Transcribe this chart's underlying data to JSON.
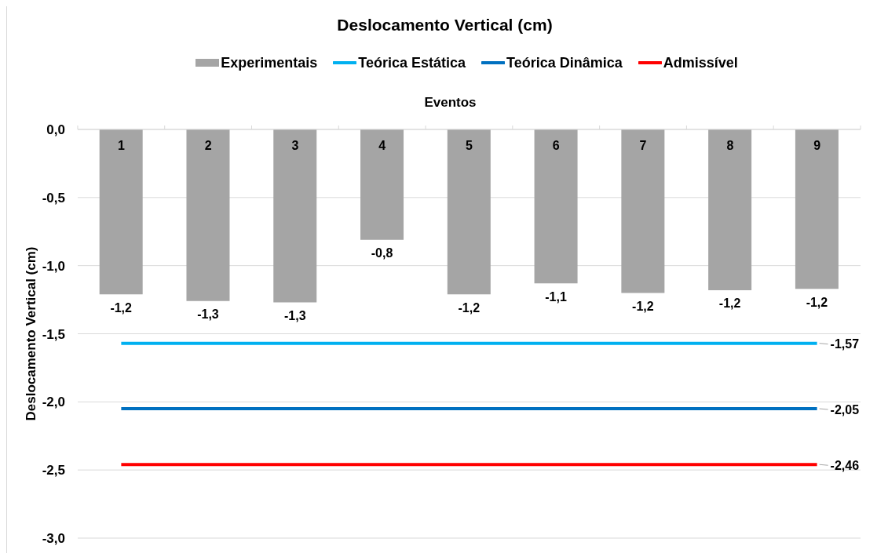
{
  "chart_data": {
    "type": "bar",
    "title": "Deslocamento Vertical (cm)",
    "xlabel": "Eventos",
    "ylabel": "Deslocamento Vertical (cm)",
    "categories": [
      "1",
      "2",
      "3",
      "4",
      "5",
      "6",
      "7",
      "8",
      "9"
    ],
    "series": [
      {
        "name": "Experimentais",
        "color": "#a5a5a5",
        "values": [
          -1.21,
          -1.26,
          -1.27,
          -0.81,
          -1.21,
          -1.13,
          -1.2,
          -1.18,
          -1.17
        ],
        "value_labels": [
          "-1,2",
          "-1,3",
          "-1,3",
          "-0,8",
          "-1,2",
          "-1,1",
          "-1,2",
          "-1,2",
          "-1,2"
        ]
      },
      {
        "name": "Teórica Estática",
        "type": "line",
        "color": "#00b0f0",
        "values": [
          -1.57,
          -1.57,
          -1.57,
          -1.57,
          -1.57,
          -1.57,
          -1.57,
          -1.57,
          -1.57
        ],
        "value_labels": [
          null,
          null,
          null,
          null,
          null,
          null,
          null,
          null,
          "-1,57"
        ]
      },
      {
        "name": "Teórica Dinâmica",
        "type": "line",
        "color": "#0070c0",
        "values": [
          -2.05,
          -2.05,
          -2.05,
          -2.05,
          -2.05,
          -2.05,
          -2.05,
          -2.05,
          -2.05
        ],
        "value_labels": [
          null,
          null,
          null,
          null,
          null,
          null,
          null,
          null,
          "-2,05"
        ]
      },
      {
        "name": "Admissível",
        "type": "line",
        "color": "#ff0000",
        "values": [
          -2.46,
          -2.46,
          -2.46,
          -2.46,
          -2.46,
          -2.46,
          -2.46,
          -2.46,
          -2.46
        ],
        "value_labels": [
          null,
          null,
          null,
          null,
          null,
          null,
          null,
          null,
          "-2,46"
        ]
      }
    ],
    "ylim": [
      -3,
      0
    ],
    "yticks": [
      {
        "value": -3,
        "label": "-3,0"
      },
      {
        "value": -2.5,
        "label": "-2,5"
      },
      {
        "value": -2,
        "label": "-2,0"
      },
      {
        "value": -1.5,
        "label": "-1,5"
      },
      {
        "value": -1,
        "label": "-1,0"
      },
      {
        "value": -0.5,
        "label": "-0,5"
      },
      {
        "value": 0,
        "label": "0,0"
      }
    ],
    "grid": "y",
    "legend": "top",
    "marker": "none"
  }
}
